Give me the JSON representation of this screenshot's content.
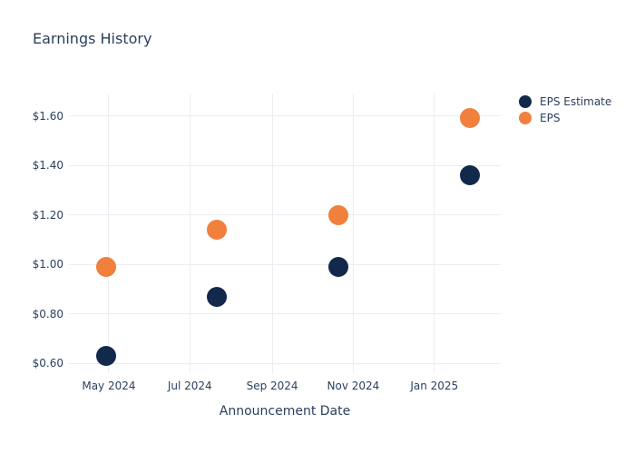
{
  "chart": {
    "title": "Earnings History",
    "x_axis_title": "Announcement Date"
  },
  "chart_data": {
    "type": "scatter",
    "title": "Earnings History",
    "xlabel": "Announcement Date",
    "ylabel": "",
    "x_axis_type": "date",
    "x_range": [
      "2024-04-01",
      "2025-02-20"
    ],
    "y_range": [
      0.56,
      1.69
    ],
    "grid": true,
    "legend_position": "right-outside-top",
    "x_ticks": [
      {
        "value": "2024-05-01",
        "label": "May 2024"
      },
      {
        "value": "2024-07-01",
        "label": "Jul 2024"
      },
      {
        "value": "2024-09-01",
        "label": "Sep 2024"
      },
      {
        "value": "2024-11-01",
        "label": "Nov 2024"
      },
      {
        "value": "2025-01-01",
        "label": "Jan 2025"
      }
    ],
    "y_ticks": [
      {
        "value": 0.6,
        "label": "$0.60"
      },
      {
        "value": 0.8,
        "label": "$0.80"
      },
      {
        "value": 1.0,
        "label": "$1.00"
      },
      {
        "value": 1.2,
        "label": "$1.20"
      },
      {
        "value": 1.4,
        "label": "$1.40"
      },
      {
        "value": 1.6,
        "label": "$1.60"
      }
    ],
    "series": [
      {
        "name": "EPS Estimate",
        "color": "#13294b",
        "marker": "circle",
        "points": [
          {
            "date": "2024-04-29",
            "value": 0.63
          },
          {
            "date": "2024-07-21",
            "value": 0.87
          },
          {
            "date": "2024-10-21",
            "value": 0.99
          },
          {
            "date": "2025-01-28",
            "value": 1.36
          }
        ]
      },
      {
        "name": "EPS",
        "color": "#f0803c",
        "marker": "circle",
        "points": [
          {
            "date": "2024-04-29",
            "value": 0.99
          },
          {
            "date": "2024-07-21",
            "value": 1.14
          },
          {
            "date": "2024-10-21",
            "value": 1.2
          },
          {
            "date": "2025-01-28",
            "value": 1.59
          }
        ]
      }
    ],
    "colors": {
      "text": "#2a3f5f",
      "grid": "#eaedf3",
      "background": "#ffffff"
    }
  }
}
